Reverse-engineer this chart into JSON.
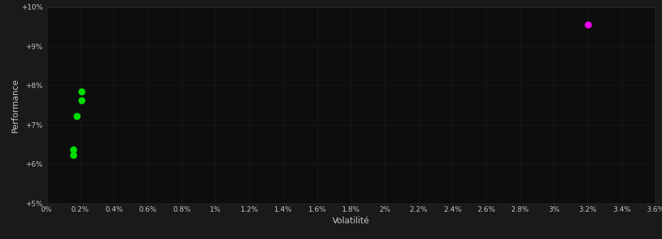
{
  "background_color": "#1a1a1a",
  "plot_bg_color": "#0d0d0d",
  "grid_color": "#2e2e2e",
  "text_color": "#c8c8c8",
  "xlabel": "Volatilité",
  "ylabel": "Performance",
  "xlim": [
    0.0,
    0.036
  ],
  "ylim": [
    0.05,
    0.1
  ],
  "xticks": [
    0.0,
    0.002,
    0.004,
    0.006,
    0.008,
    0.01,
    0.012,
    0.014,
    0.016,
    0.018,
    0.02,
    0.022,
    0.024,
    0.026,
    0.028,
    0.03,
    0.032,
    0.034,
    0.036
  ],
  "yticks": [
    0.05,
    0.06,
    0.07,
    0.08,
    0.09,
    0.1
  ],
  "xtick_labels": [
    "0%",
    "0.2%",
    "0.4%",
    "0.6%",
    "0.8%",
    "1%",
    "1.2%",
    "1.4%",
    "1.6%",
    "1.8%",
    "2%",
    "2.2%",
    "2.4%",
    "2.6%",
    "2.8%",
    "3%",
    "3.2%",
    "3.4%",
    "3.6%"
  ],
  "ytick_labels": [
    "+5%",
    "+6%",
    "+7%",
    "+8%",
    "+9%",
    "+10%"
  ],
  "green_points": [
    [
      0.0021,
      0.0785
    ],
    [
      0.0021,
      0.0762
    ],
    [
      0.0018,
      0.0722
    ],
    [
      0.0016,
      0.0637
    ],
    [
      0.0016,
      0.0623
    ]
  ],
  "magenta_points": [
    [
      0.032,
      0.0955
    ]
  ],
  "green_color": "#00dd00",
  "magenta_color": "#ee00ee",
  "marker_size": 55
}
